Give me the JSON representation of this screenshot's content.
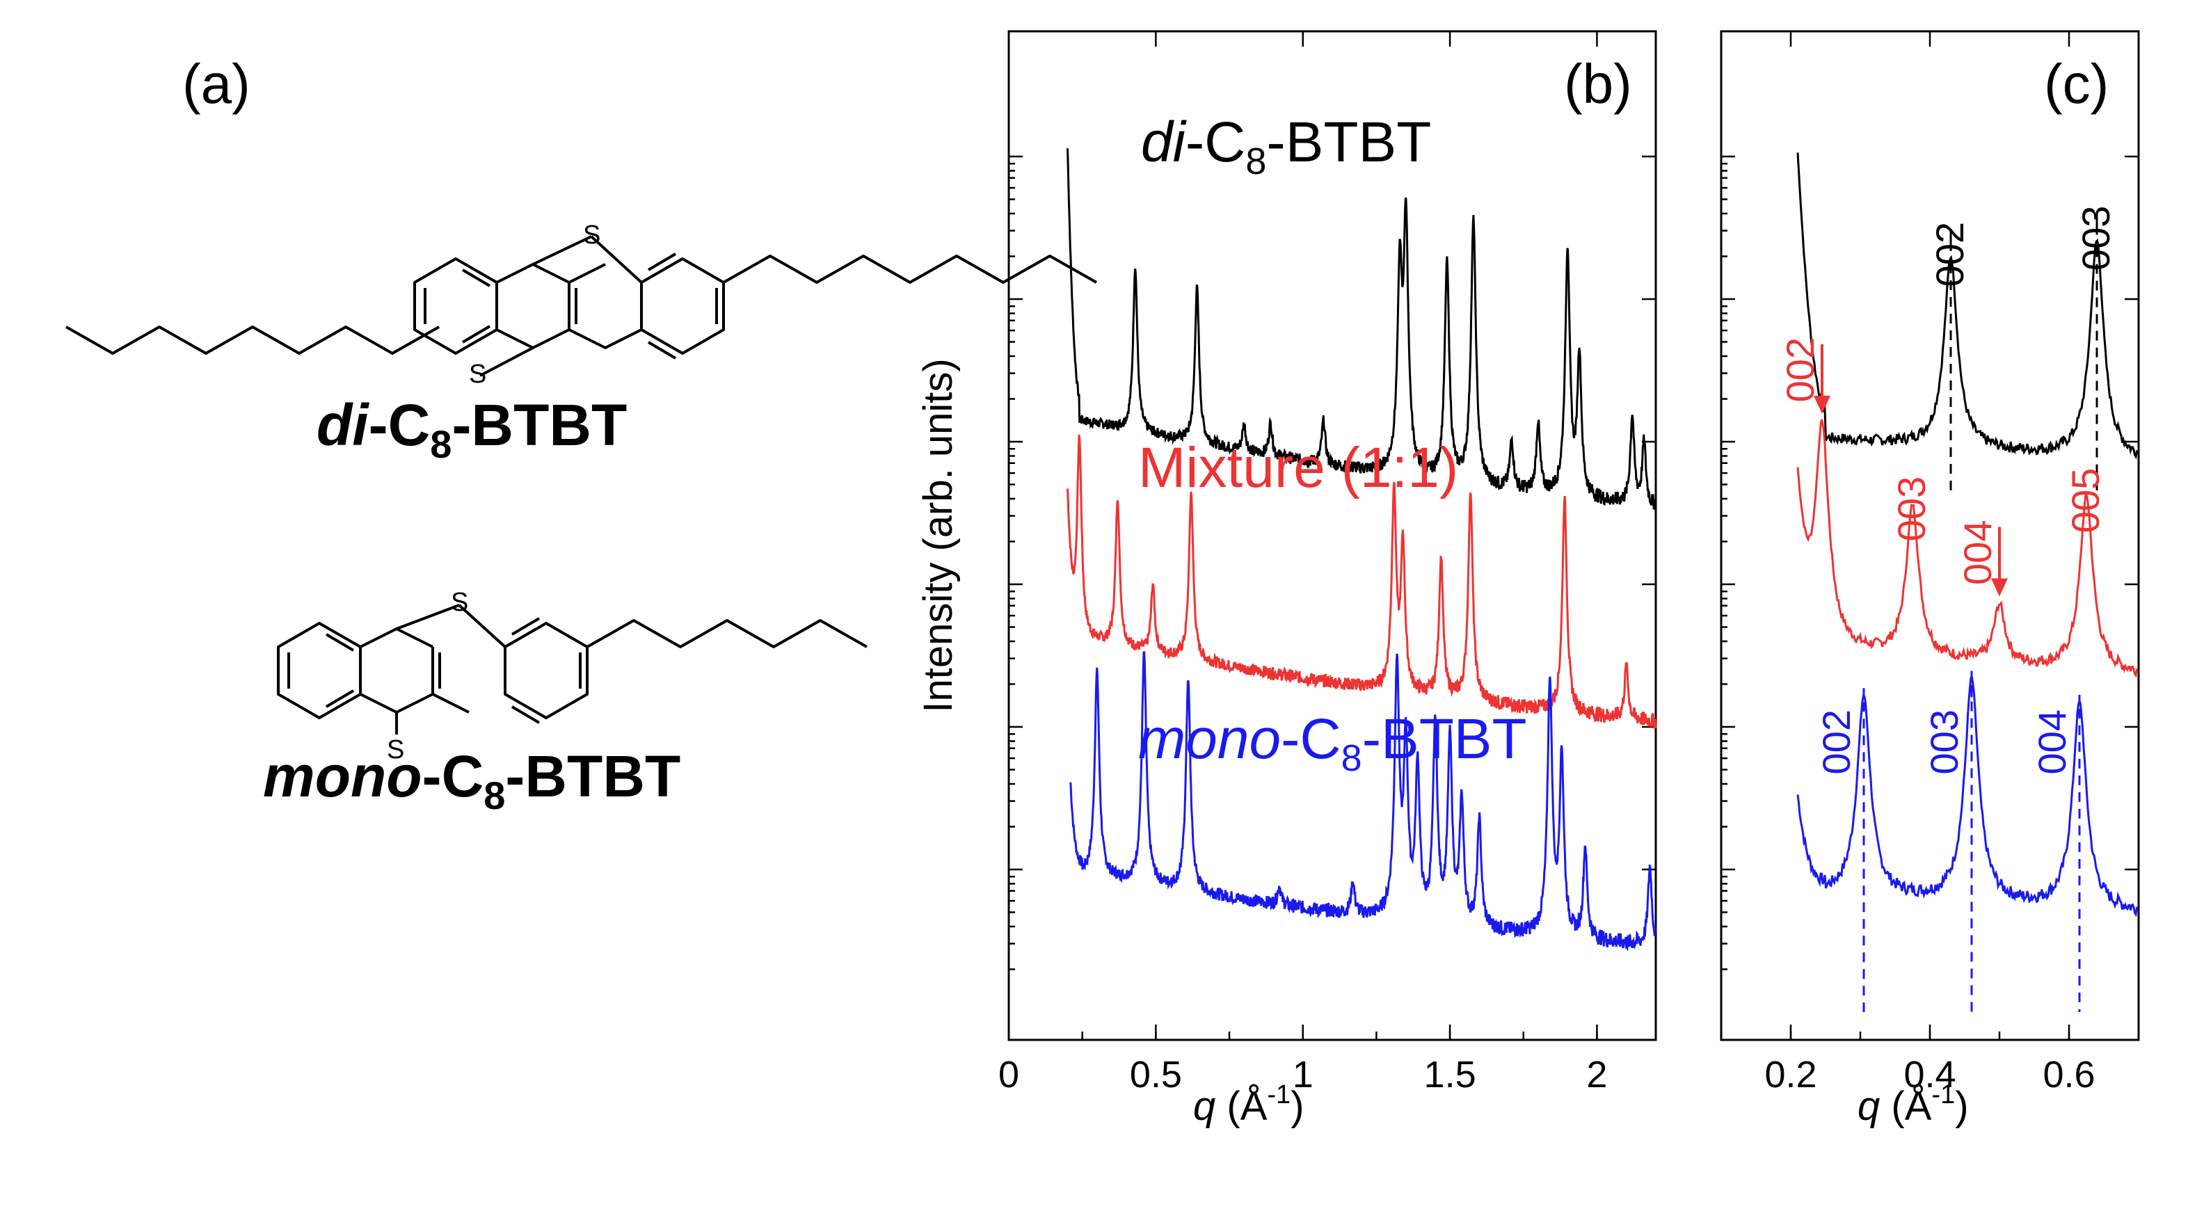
{
  "colors": {
    "di": "#000000",
    "mixture": "#ee3333",
    "mono": "#1a1aee"
  },
  "panels": {
    "a": "(a)",
    "b": "(b)",
    "c": "(c)"
  },
  "molecules": {
    "di": {
      "prefix": "di",
      "mid": "-C",
      "sub": "8",
      "suffix": "-BTBT"
    },
    "mono": {
      "prefix": "mono",
      "mid": "-C",
      "sub": "8",
      "suffix": "-BTBT"
    },
    "sulfur": "S"
  },
  "ylabel": "Intensity (arb. units)",
  "xlabel": {
    "q": "q",
    "unit": " (Å",
    "exp": "-1",
    "close": ")"
  },
  "series_labels": {
    "di": {
      "prefix": "di",
      "mid": "-C",
      "sub": "8",
      "suffix": "-BTBT"
    },
    "mixture": "Mixture (1:1)",
    "mono": {
      "prefix": "mono",
      "mid": "-C",
      "sub": "8",
      "suffix": "-BTBT"
    }
  },
  "chart_data": [
    {
      "type": "line",
      "panel": "(b)",
      "xlabel": "q (Å-1)",
      "ylabel": "Intensity (arb. units)",
      "xlim": [
        0,
        2.2
      ],
      "yscale": "log",
      "xticks": [
        0,
        0.5,
        1,
        1.5,
        2
      ],
      "xtick_labels": [
        "0",
        "0.5",
        "1",
        "1.5",
        "2"
      ],
      "series": [
        {
          "name": "di-C8-BTBT",
          "color": "#000000",
          "baseline": 0.24,
          "offset": 0.74,
          "start": 0.2,
          "start_height": 1.22,
          "peaks": [
            [
              0.43,
              0.5
            ],
            [
              0.64,
              0.44
            ],
            [
              0.8,
              0.05
            ],
            [
              0.89,
              0.06
            ],
            [
              1.07,
              0.08
            ],
            [
              1.33,
              0.62
            ],
            [
              1.35,
              0.9
            ],
            [
              1.49,
              0.62
            ],
            [
              1.58,
              0.85
            ],
            [
              1.71,
              0.08
            ],
            [
              1.8,
              0.12
            ],
            [
              1.9,
              0.7
            ],
            [
              1.94,
              0.3
            ],
            [
              2.12,
              0.15
            ],
            [
              2.16,
              0.1
            ]
          ]
        },
        {
          "name": "Mixture (1:1)",
          "color": "#ee3333",
          "baseline": 0.22,
          "offset": 0.375,
          "start": 0.2,
          "start_height": 0.42,
          "peaks": [
            [
              0.24,
              0.7
            ],
            [
              0.37,
              0.42
            ],
            [
              0.49,
              0.15
            ],
            [
              0.62,
              0.47
            ],
            [
              1.31,
              0.55
            ],
            [
              1.34,
              0.35
            ],
            [
              1.47,
              0.3
            ],
            [
              1.57,
              0.54
            ],
            [
              1.89,
              0.53
            ],
            [
              2.1,
              0.08
            ]
          ]
        },
        {
          "name": "mono-C8-BTBT",
          "color": "#1a1aee",
          "baseline": 0.18,
          "offset": 0.0,
          "start": 0.21,
          "start_height": 0.2,
          "peaks": [
            [
              0.3,
              0.65
            ],
            [
              0.46,
              0.76
            ],
            [
              0.61,
              0.63
            ],
            [
              0.92,
              0.03
            ],
            [
              1.17,
              0.05
            ],
            [
              1.32,
              0.78
            ],
            [
              1.35,
              0.45
            ],
            [
              1.39,
              0.35
            ],
            [
              1.45,
              0.5
            ],
            [
              1.5,
              0.45
            ],
            [
              1.54,
              0.25
            ],
            [
              1.6,
              0.2
            ],
            [
              1.84,
              0.7
            ],
            [
              1.88,
              0.4
            ],
            [
              1.96,
              0.15
            ],
            [
              2.18,
              0.12
            ]
          ]
        }
      ]
    },
    {
      "type": "line",
      "panel": "(c)",
      "xlabel": "q (Å-1)",
      "ylabel": "",
      "xlim": [
        0.1,
        0.7
      ],
      "xticks": [
        0.2,
        0.4,
        0.6
      ],
      "xtick_labels": [
        "0.2",
        "0.4",
        "0.6"
      ],
      "series": [
        {
          "name": "di-C8-BTBT",
          "color": "#000000",
          "baseline": 0.2,
          "offset": 0.74,
          "start": 0.21,
          "start_height": 1.22,
          "peaks": [
            [
              0.43,
              0.58
            ],
            [
              0.64,
              0.68
            ]
          ]
        },
        {
          "name": "Mixture (1:1)",
          "color": "#ee3333",
          "baseline": 0.2,
          "offset": 0.37,
          "start": 0.21,
          "start_height": 0.52,
          "peaks": [
            [
              0.245,
              0.8
            ],
            [
              0.375,
              0.42
            ],
            [
              0.5,
              0.12
            ],
            [
              0.625,
              0.48
            ]
          ]
        },
        {
          "name": "mono-C8-BTBT",
          "color": "#1a1aee",
          "baseline": 0.14,
          "offset": 0.0,
          "start": 0.21,
          "start_height": 0.2,
          "peaks": [
            [
              0.305,
              0.56
            ],
            [
              0.46,
              0.65
            ],
            [
              0.615,
              0.55
            ]
          ]
        }
      ],
      "annotations": [
        {
          "text": "002",
          "series": "di-C8-BTBT",
          "q": 0.43
        },
        {
          "text": "003",
          "series": "di-C8-BTBT",
          "q": 0.64
        },
        {
          "text": "002",
          "series": "Mixture (1:1)",
          "q": 0.245,
          "arrow": true
        },
        {
          "text": "003",
          "series": "Mixture (1:1)",
          "q": 0.375
        },
        {
          "text": "004",
          "series": "Mixture (1:1)",
          "q": 0.5,
          "arrow": true
        },
        {
          "text": "005",
          "series": "Mixture (1:1)",
          "q": 0.625
        },
        {
          "text": "002",
          "series": "mono-C8-BTBT",
          "q": 0.305
        },
        {
          "text": "003",
          "series": "mono-C8-BTBT",
          "q": 0.46
        },
        {
          "text": "004",
          "series": "mono-C8-BTBT",
          "q": 0.615
        }
      ]
    }
  ]
}
